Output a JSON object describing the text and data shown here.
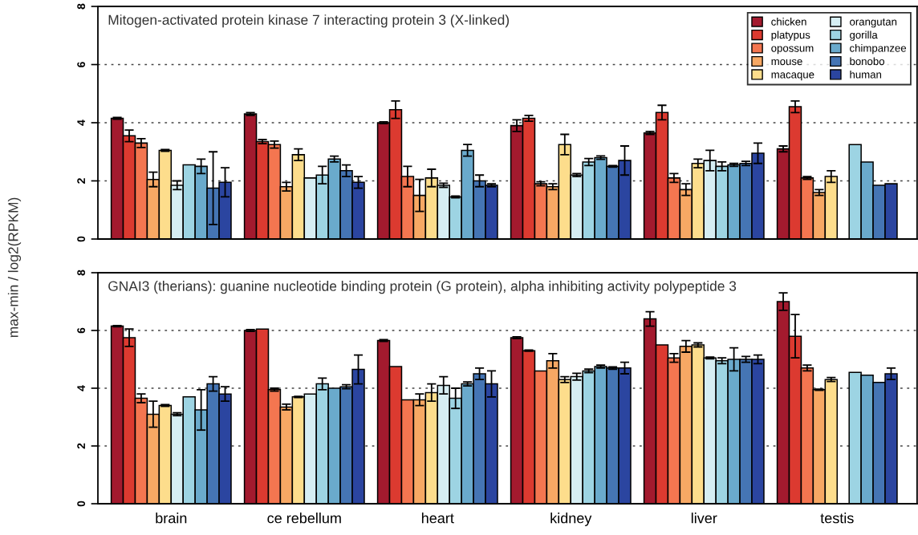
{
  "chart_data": [
    {
      "type": "bar",
      "title": "Mitogen-activated protein kinase 7 interacting protein 3 (X-linked)",
      "ylabel": "max-min / log2(RPKM)",
      "categories": [
        null,
        null,
        null,
        null,
        null,
        null
      ],
      "ylim": [
        0,
        8
      ],
      "yticks": [
        0,
        2,
        4,
        6,
        8
      ],
      "grid": "y",
      "legend": "top right",
      "series": [
        {
          "name": "chicken",
          "color": "#a31a2e",
          "values": [
            4.15,
            4.3,
            4.0,
            3.9,
            3.65,
            3.1
          ],
          "errors": [
            0.03,
            0.05,
            0.03,
            0.2,
            0.05,
            0.1
          ]
        },
        {
          "name": "platypus",
          "color": "#dc3a30",
          "values": [
            3.55,
            3.35,
            4.45,
            4.15,
            4.35,
            4.55
          ],
          "errors": [
            0.2,
            0.07,
            0.3,
            0.1,
            0.25,
            0.2
          ]
        },
        {
          "name": "opossum",
          "color": "#f47650",
          "values": [
            3.3,
            3.25,
            2.15,
            1.9,
            2.1,
            2.1
          ],
          "errors": [
            0.15,
            0.12,
            0.35,
            0.07,
            0.15,
            0.05
          ]
        },
        {
          "name": "mouse",
          "color": "#f7a864",
          "values": [
            2.05,
            1.8,
            1.5,
            1.8,
            1.7,
            1.6
          ],
          "errors": [
            0.25,
            0.15,
            0.55,
            0.1,
            0.2,
            0.1
          ]
        },
        {
          "name": "macaque",
          "color": "#fddd8c",
          "values": [
            3.05,
            2.9,
            2.1,
            3.25,
            2.6,
            2.15
          ],
          "errors": [
            0.03,
            0.2,
            0.3,
            0.35,
            0.15,
            0.2
          ]
        },
        {
          "name": "orangutan",
          "color": "#d6eef3",
          "values": [
            1.85,
            2.1,
            1.85,
            2.2,
            2.7,
            null
          ],
          "errors": [
            0.15,
            null,
            0.07,
            0.05,
            0.35,
            null
          ]
        },
        {
          "name": "gorilla",
          "color": "#9dd4e3",
          "values": [
            2.55,
            2.2,
            1.45,
            2.65,
            2.5,
            3.25
          ],
          "errors": [
            null,
            0.3,
            0.03,
            0.12,
            0.15,
            null
          ]
        },
        {
          "name": "chimpanzee",
          "color": "#6aaacc",
          "values": [
            2.5,
            2.75,
            3.05,
            2.8,
            2.55,
            2.65
          ],
          "errors": [
            0.25,
            0.1,
            0.2,
            0.06,
            0.05,
            null
          ]
        },
        {
          "name": "bonobo",
          "color": "#4575b4",
          "values": [
            1.75,
            2.35,
            2.0,
            2.5,
            2.6,
            1.85
          ],
          "errors": [
            1.25,
            0.2,
            0.2,
            0.03,
            0.07,
            null
          ]
        },
        {
          "name": "human",
          "color": "#2b45a0",
          "values": [
            1.95,
            1.95,
            1.85,
            2.7,
            2.95,
            1.9
          ],
          "errors": [
            0.5,
            0.2,
            0.05,
            0.5,
            0.35,
            null
          ]
        }
      ]
    },
    {
      "type": "bar",
      "title": "GNAI3 (therians): guanine nucleotide binding protein (G protein), alpha inhibiting activity polypeptide 3",
      "categories": [
        "brain",
        "ce rebellum",
        "heart",
        "kidney",
        "liver",
        "testis"
      ],
      "ylim": [
        0,
        8
      ],
      "yticks": [
        0,
        2,
        4,
        6,
        8
      ],
      "grid": "y",
      "series": [
        {
          "color": "#a31a2e",
          "values": [
            6.15,
            6.0,
            5.65,
            5.75,
            6.4,
            7.0
          ],
          "errors": [
            0.02,
            0.03,
            0.03,
            0.03,
            0.25,
            0.3
          ]
        },
        {
          "color": "#dc3a30",
          "values": [
            5.75,
            6.05,
            4.75,
            5.3,
            5.5,
            5.8
          ],
          "errors": [
            0.3,
            null,
            null,
            0.02,
            null,
            0.75
          ]
        },
        {
          "color": "#f47650",
          "values": [
            3.65,
            3.95,
            3.6,
            4.6,
            5.05,
            4.7
          ],
          "errors": [
            0.15,
            0.05,
            null,
            null,
            0.15,
            0.1
          ]
        },
        {
          "color": "#f7a864",
          "values": [
            3.1,
            3.35,
            3.6,
            4.95,
            5.45,
            3.95
          ],
          "errors": [
            0.45,
            0.1,
            0.2,
            0.25,
            0.2,
            0.02
          ]
        },
        {
          "color": "#fddd8c",
          "values": [
            3.4,
            3.7,
            3.85,
            4.3,
            5.5,
            4.3
          ],
          "errors": [
            0.03,
            0.02,
            0.3,
            0.1,
            0.07,
            0.07
          ]
        },
        {
          "color": "#d6eef3",
          "values": [
            3.1,
            3.8,
            4.1,
            4.4,
            5.05,
            null
          ],
          "errors": [
            0.05,
            null,
            0.3,
            0.12,
            0.03,
            null
          ]
        },
        {
          "color": "#9dd4e3",
          "values": [
            3.7,
            4.15,
            3.65,
            4.6,
            4.95,
            4.55
          ],
          "errors": [
            null,
            0.2,
            0.35,
            0.06,
            0.1,
            null
          ]
        },
        {
          "color": "#6aaacc",
          "values": [
            3.25,
            4.0,
            4.15,
            4.75,
            5.0,
            4.45
          ],
          "errors": [
            0.7,
            null,
            0.07,
            0.05,
            0.4,
            null
          ]
        },
        {
          "color": "#4575b4",
          "values": [
            4.15,
            4.05,
            4.5,
            4.7,
            5.0,
            4.2
          ],
          "errors": [
            0.25,
            0.07,
            0.2,
            0.04,
            0.1,
            null
          ]
        },
        {
          "color": "#2b45a0",
          "values": [
            3.8,
            4.65,
            4.15,
            4.7,
            5.0,
            4.5
          ],
          "errors": [
            0.25,
            0.5,
            0.45,
            0.2,
            0.15,
            0.2
          ]
        }
      ]
    }
  ]
}
